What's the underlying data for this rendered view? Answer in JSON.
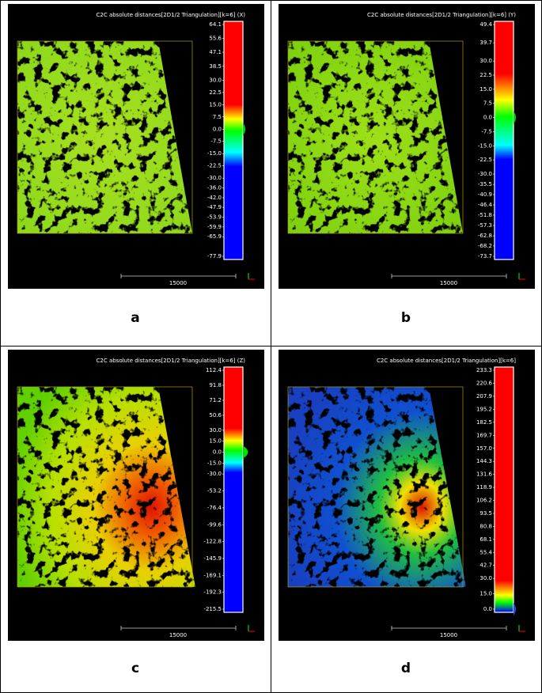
{
  "panels": [
    {
      "title": "C2C absolute distances[2D1/2 Triangulation][k=6] (X)",
      "colorbar_labels": [
        "64.1",
        "55.6",
        "47.1",
        "38.5",
        "30.0",
        "22.5",
        "15.0",
        "7.5",
        "0.0",
        "-7.5",
        "-15.0",
        "-22.5",
        "-30.0",
        "-36.0",
        "-42.0",
        "-47.9",
        "-53.9",
        "-59.9",
        "-65.9",
        "-77.9"
      ],
      "scale_label": "15000",
      "letter": "a"
    },
    {
      "title": "C2C absolute distances[2D1/2 Triangulation][k=6] (Y)",
      "colorbar_labels": [
        "49.4",
        "39.7",
        "30.0",
        "22.5",
        "15.0",
        "7.5",
        "0.0",
        "-7.5",
        "-15.0",
        "-22.5",
        "-30.0",
        "-35.5",
        "-40.9",
        "-46.4",
        "-51.8",
        "-57.3",
        "-62.8",
        "-68.2",
        "-73.7"
      ],
      "scale_label": "15000",
      "letter": "b"
    },
    {
      "title": "C2C absolute distances[2D1/2 Triangulation][k=6] (Z)",
      "colorbar_labels": [
        "112.4",
        "91.8",
        "71.2",
        "50.6",
        "30.0",
        "15.0",
        "0.0",
        "-15.0",
        "-30.0",
        "-53.2",
        "-76.4",
        "-99.6",
        "-122.8",
        "-145.9",
        "-169.1",
        "-192.3",
        "-215.5"
      ],
      "scale_label": "15000",
      "letter": "c"
    },
    {
      "title": "C2C absolute distances[2D1/2 Triangulation][k=6]",
      "colorbar_labels": [
        "233.3",
        "220.6",
        "207.9",
        "195.2",
        "182.5",
        "169.7",
        "157.0",
        "144.3",
        "131.6",
        "118.9",
        "106.2",
        "93.5",
        "80.8",
        "68.1",
        "55.4",
        "42.7",
        "30.0",
        "15.0",
        "0.0"
      ],
      "scale_label": "15000",
      "letter": "d"
    }
  ]
}
